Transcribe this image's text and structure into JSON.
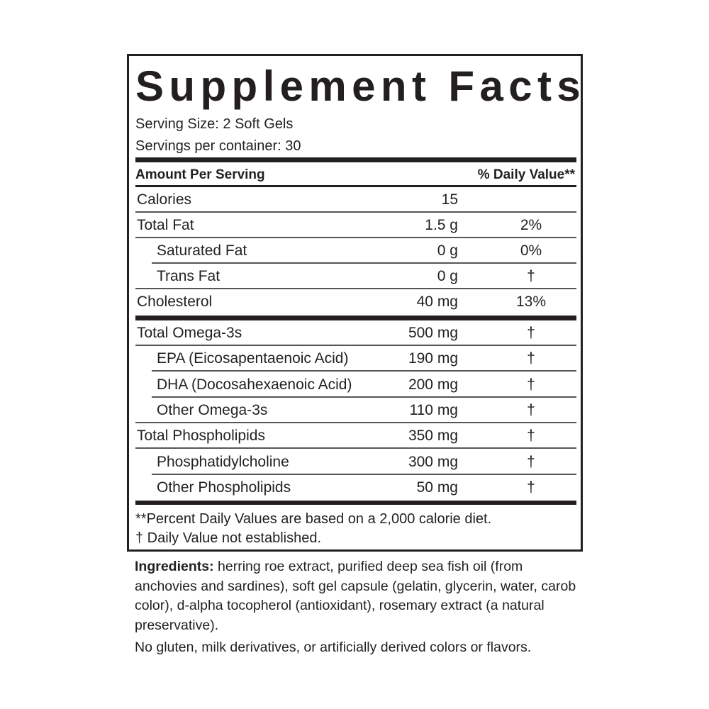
{
  "title": "Supplement Facts",
  "serving_size": "Serving Size: 2 Soft Gels",
  "servings_per_container": "Servings per container: 30",
  "header": {
    "amount": "Amount Per Serving",
    "dv": "% Daily Value**"
  },
  "rows": [
    {
      "label": "Calories",
      "amount": "15",
      "dv": ""
    },
    {
      "label": "Total Fat",
      "amount": "1.5 g",
      "dv": "2%"
    },
    {
      "label": "Saturated Fat",
      "amount": "0 g",
      "dv": "0%"
    },
    {
      "label": "Trans Fat",
      "amount": "0 g",
      "dv": "†"
    },
    {
      "label": "Cholesterol",
      "amount": "40 mg",
      "dv": "13%"
    },
    {
      "label": "Total Omega-3s",
      "amount": "500 mg",
      "dv": "†"
    },
    {
      "label": "EPA (Eicosapentaenoic Acid)",
      "amount": "190 mg",
      "dv": "†"
    },
    {
      "label": "DHA (Docosahexaenoic Acid)",
      "amount": "200 mg",
      "dv": "†"
    },
    {
      "label": "Other Omega-3s",
      "amount": "110 mg",
      "dv": "†"
    },
    {
      "label": "Total Phospholipids",
      "amount": "350 mg",
      "dv": "†"
    },
    {
      "label": "Phosphatidylcholine",
      "amount": "300 mg",
      "dv": "†"
    },
    {
      "label": "Other Phospholipids",
      "amount": "50 mg",
      "dv": "†"
    }
  ],
  "footnotes": [
    "**Percent Daily Values are based on a 2,000 calorie diet.",
    "†  Daily Value not established."
  ],
  "ingredients": {
    "label": "Ingredients:",
    "text": " herring roe extract, purified deep sea fish oil (from anchovies and sardines), soft gel capsule (gelatin, glycerin, water, carob color), d-alpha tocopherol (antioxidant), rosemary extract (a natural preservative)."
  },
  "allergen_note": "No gluten, milk derivatives, or artificially derived colors or flavors."
}
